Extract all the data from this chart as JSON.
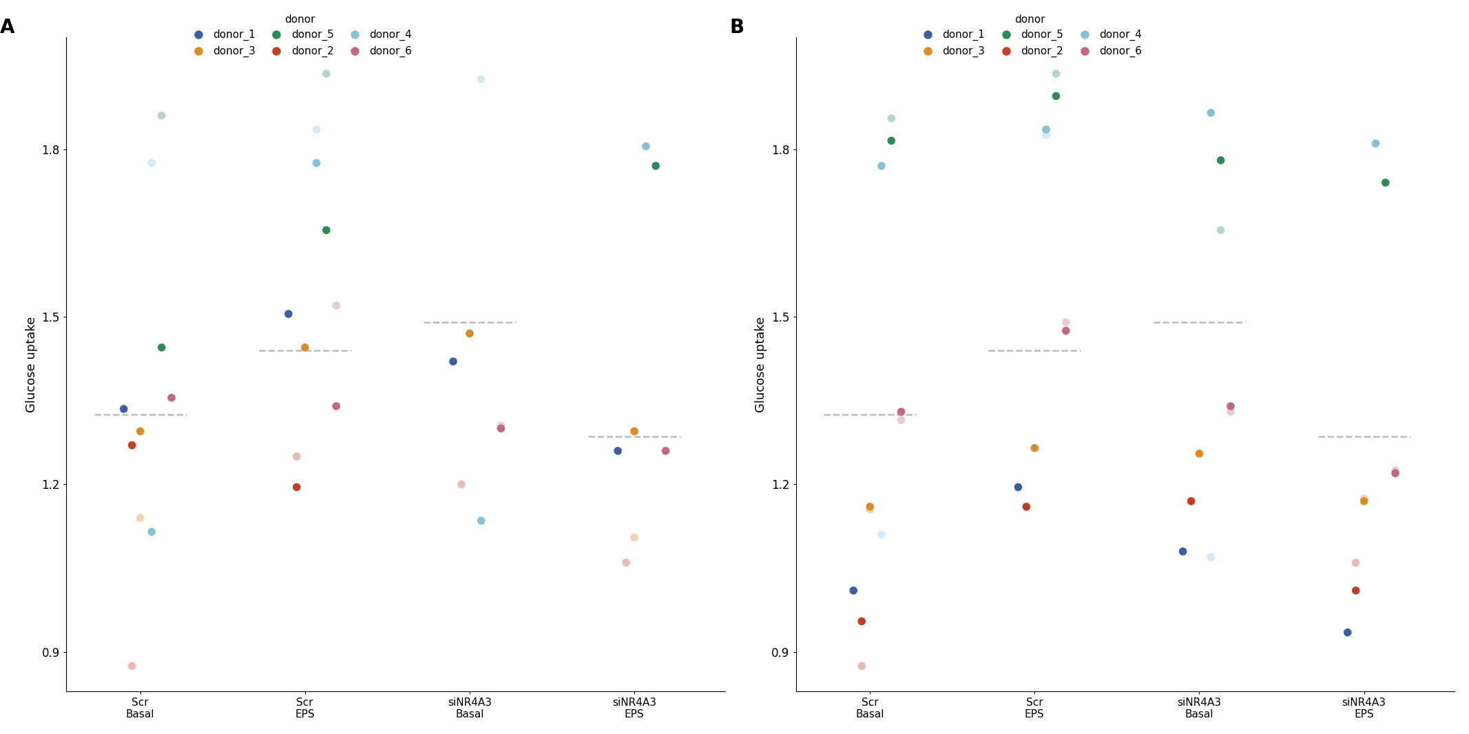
{
  "panel_A": {
    "dashed_lines": [
      1.325,
      1.44,
      1.49,
      1.285
    ],
    "pale": {
      "donor_1": [
        null,
        null,
        null,
        null
      ],
      "donor_2": [
        0.875,
        1.25,
        1.2,
        1.06
      ],
      "donor_3": [
        1.14,
        null,
        null,
        1.105
      ],
      "donor_4": [
        1.775,
        1.835,
        1.925,
        null
      ],
      "donor_5": [
        1.86,
        1.935,
        null,
        null
      ],
      "donor_6": [
        null,
        1.52,
        1.305,
        1.26
      ]
    },
    "dark": {
      "donor_1": [
        1.335,
        1.505,
        1.42,
        1.26
      ],
      "donor_2": [
        1.27,
        1.195,
        null,
        null
      ],
      "donor_3": [
        1.295,
        1.445,
        1.47,
        1.295
      ],
      "donor_4": [
        1.115,
        1.775,
        1.135,
        1.805
      ],
      "donor_5": [
        1.445,
        1.655,
        null,
        1.77
      ],
      "donor_6": [
        1.355,
        1.34,
        1.3,
        1.26
      ]
    }
  },
  "panel_B": {
    "dashed_lines": [
      1.325,
      1.44,
      1.49,
      1.285
    ],
    "pale": {
      "donor_1": [
        null,
        null,
        null,
        null
      ],
      "donor_2": [
        0.875,
        1.16,
        1.17,
        1.06
      ],
      "donor_3": [
        1.155,
        null,
        null,
        1.175
      ],
      "donor_4": [
        1.11,
        1.825,
        1.07,
        null
      ],
      "donor_5": [
        1.855,
        1.935,
        1.655,
        null
      ],
      "donor_6": [
        1.315,
        1.49,
        1.33,
        1.225
      ]
    },
    "dark": {
      "donor_1": [
        1.01,
        1.195,
        1.08,
        0.935
      ],
      "donor_2": [
        0.955,
        1.16,
        1.17,
        1.01
      ],
      "donor_3": [
        1.16,
        1.265,
        1.255,
        1.17
      ],
      "donor_4": [
        1.77,
        1.835,
        1.865,
        1.81
      ],
      "donor_5": [
        1.815,
        1.895,
        1.78,
        1.74
      ],
      "donor_6": [
        1.33,
        1.475,
        1.34,
        1.22
      ]
    }
  },
  "donors": [
    "donor_1",
    "donor_2",
    "donor_3",
    "donor_4",
    "donor_5",
    "donor_6"
  ],
  "donor_colors": {
    "donor_1": "#3C5FA0",
    "donor_2": "#BE4125",
    "donor_3": "#D98C2A",
    "donor_4": "#85C1D8",
    "donor_5": "#2E8B55",
    "donor_6": "#C06888"
  },
  "treatments": [
    "Scr\nBasal",
    "Scr\nEPS",
    "siNR4A3\nBasal",
    "siNR4A3\nEPS"
  ],
  "ylabel": "Glucose uptake",
  "ylim": [
    0.83,
    2.0
  ],
  "yticks": [
    0.9,
    1.2,
    1.5,
    1.8
  ],
  "background_color": "#ffffff",
  "dashed_color": "#BBBBBB",
  "pale_alpha": 0.35,
  "dark_alpha": 1.0,
  "dot_size": 70,
  "jitter_x": {
    "donor_1": -0.1,
    "donor_2": -0.05,
    "donor_3": 0.0,
    "donor_4": 0.07,
    "donor_5": 0.13,
    "donor_6": 0.19
  }
}
